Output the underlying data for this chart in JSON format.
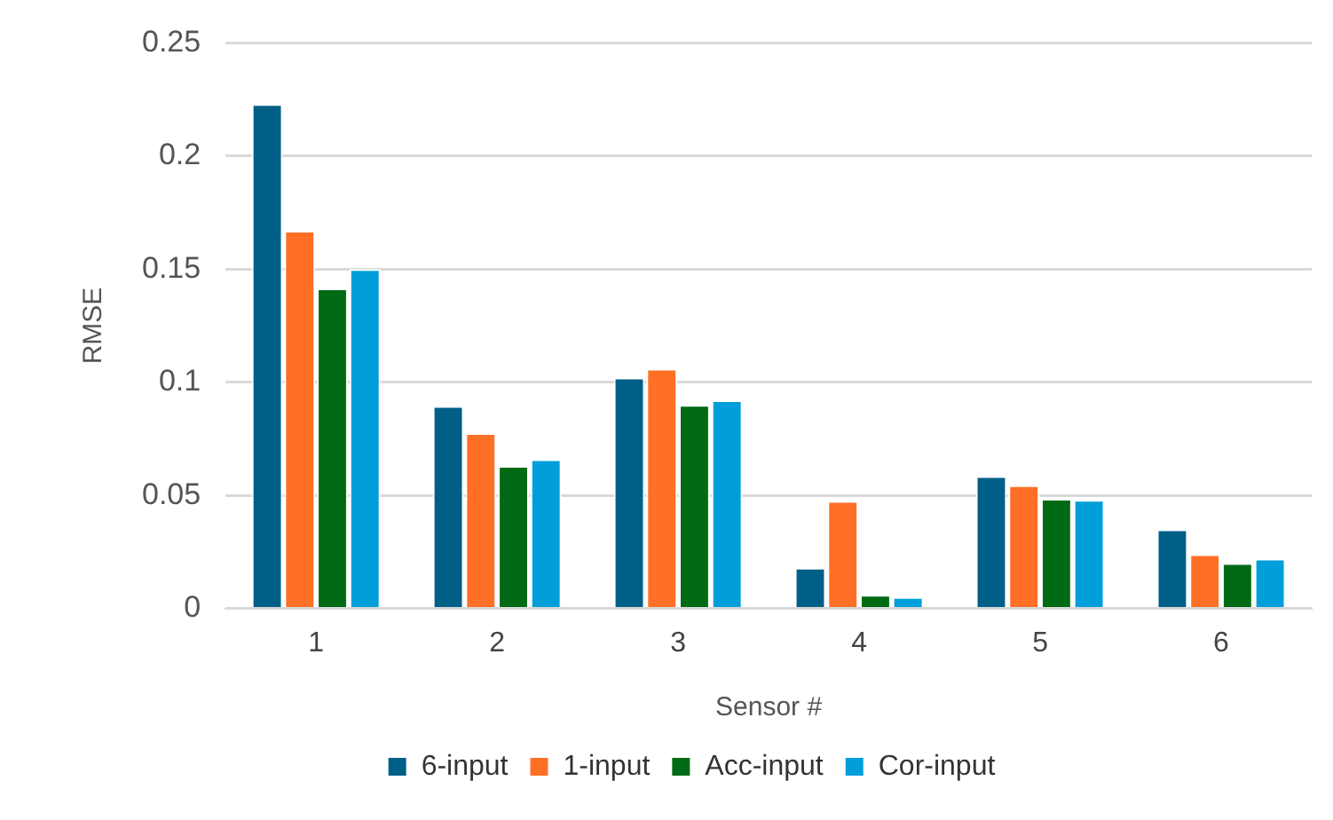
{
  "chart_data": {
    "type": "bar",
    "xlabel": "Sensor #",
    "ylabel": "RMSE",
    "categories": [
      "1",
      "2",
      "3",
      "4",
      "5",
      "6"
    ],
    "series": [
      {
        "name": "6-input",
        "color": "#005f87",
        "values": [
          0.223,
          0.0895,
          0.102,
          0.018,
          0.0585,
          0.035
        ]
      },
      {
        "name": "1-input",
        "color": "#ff6f26",
        "values": [
          0.167,
          0.0775,
          0.106,
          0.0475,
          0.0545,
          0.024
        ]
      },
      {
        "name": "Acc-input",
        "color": "#006a14",
        "values": [
          0.1415,
          0.063,
          0.09,
          0.006,
          0.0485,
          0.02
        ]
      },
      {
        "name": "Cor-input",
        "color": "#009fd9",
        "values": [
          0.15,
          0.066,
          0.092,
          0.005,
          0.048,
          0.022
        ]
      }
    ],
    "ylim": [
      0,
      0.25
    ],
    "yticks": [
      0,
      0.05,
      0.1,
      0.15,
      0.2,
      0.25
    ],
    "grid": "y",
    "legend": "bottom"
  }
}
